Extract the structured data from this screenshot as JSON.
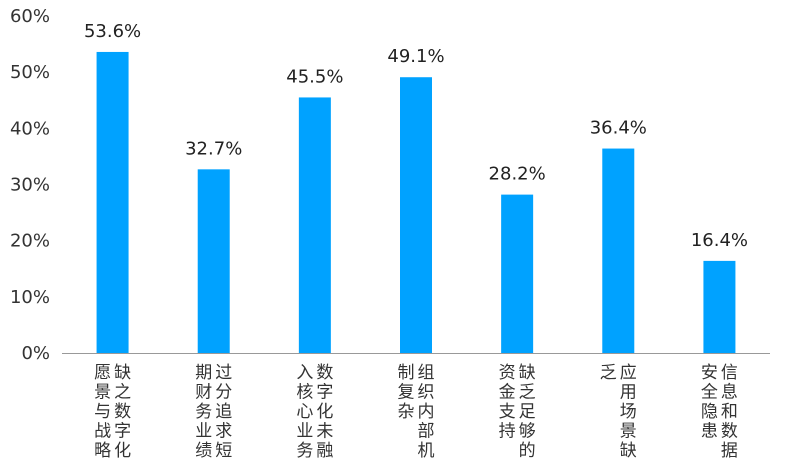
{
  "chart_data": {
    "type": "bar",
    "categories": [
      [
        "缺之数字化",
        "愿景与战略"
      ],
      [
        "过分追求短",
        "期财务业绩"
      ],
      [
        "数字化未融",
        "入核心业务"
      ],
      [
        "组织内部机",
        "制复杂"
      ],
      [
        "缺乏足够的",
        "资金支持"
      ],
      [
        "应用场景缺",
        "乏"
      ],
      [
        "信息和数据",
        "安全隐患"
      ]
    ],
    "values": [
      53.6,
      32.7,
      45.5,
      49.1,
      28.2,
      36.4,
      16.4
    ],
    "value_labels": [
      "53.6%",
      "32.7%",
      "45.5%",
      "49.1%",
      "28.2%",
      "36.4%",
      "16.4%"
    ],
    "yticks": [
      "0%",
      "10%",
      "20%",
      "30%",
      "40%",
      "50%",
      "60%"
    ],
    "ylim": [
      0,
      60
    ],
    "bar_color": "#00A2FF",
    "axis_color": "#999999",
    "grid": false,
    "legend": "none",
    "title": "",
    "xlabel": "",
    "ylabel": ""
  }
}
